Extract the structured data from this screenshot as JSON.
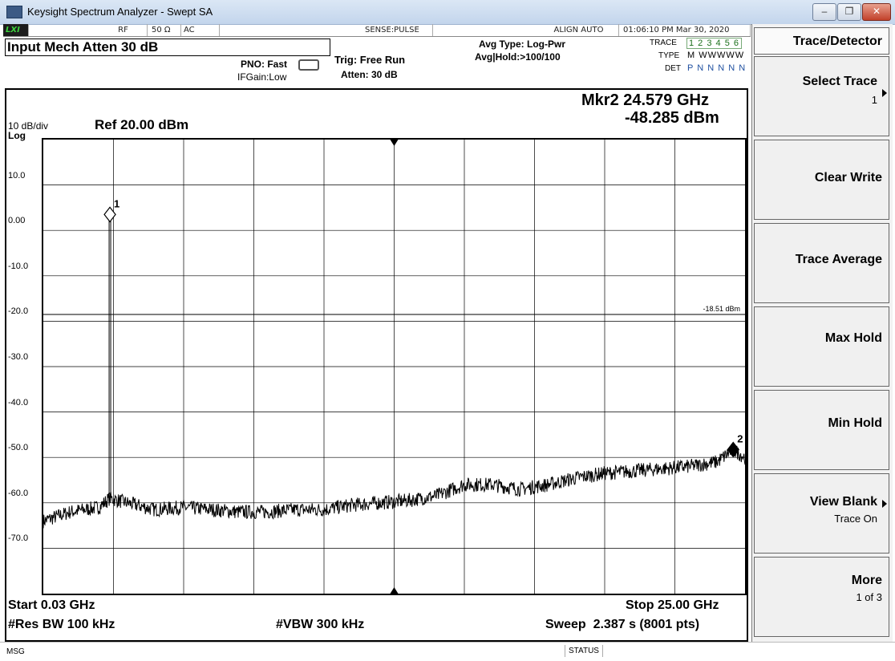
{
  "window": {
    "title": "Keysight Spectrum Analyzer - Swept SA",
    "controls": [
      "‒",
      "❐",
      "✕"
    ]
  },
  "status_bar": {
    "lxi": "LXI",
    "rf": "RF",
    "impedance": "50 Ω",
    "coupling": "AC",
    "sense": "SENSE:PULSE",
    "align": "ALIGN AUTO",
    "datetime": "01:06:10 PM Mar 30, 2020"
  },
  "header": {
    "input_mech_atten": "Input Mech Atten 30 dB",
    "pno": "PNO: Fast",
    "ifgain": "IFGain:Low",
    "trig": "Trig: Free Run",
    "atten": "Atten: 30 dB",
    "avg_type": "Avg Type: Log-Pwr",
    "avg_hold": "Avg|Hold:>100/100",
    "trace_label": "TRACE",
    "trace_values": "1 2 3 4 5 6",
    "type_label": "TYPE",
    "type_values": "M WWWWW",
    "det_label": "DET",
    "det_values": "P N N N N N"
  },
  "marker": {
    "freq": "Mkr2 24.579 GHz",
    "level": "-48.285 dBm"
  },
  "scale": {
    "div": "10 dB/div",
    "log": "Log",
    "ref": "Ref 20.00 dBm"
  },
  "y_ticks": [
    "10.0",
    "0.00",
    "-10.0",
    "-20.0",
    "-30.0",
    "-40.0",
    "-50.0",
    "-60.0",
    "-70.0"
  ],
  "display_line": {
    "label": "-18.51 dBm",
    "value": -18.51
  },
  "footer": {
    "start": "Start 0.03 GHz",
    "stop": "Stop 25.00 GHz",
    "res_bw": "#Res BW 100 kHz",
    "vbw": "#VBW 300 kHz",
    "sweep": "Sweep  2.387 s (8001 pts)"
  },
  "softkeys": {
    "menu_title": "Trace/Detector",
    "select_trace": "Select Trace",
    "select_trace_value": "1",
    "clear_write": "Clear Write",
    "trace_average": "Trace Average",
    "max_hold": "Max Hold",
    "min_hold": "Min Hold",
    "view_blank": "View Blank",
    "view_blank_value": "Trace On",
    "more": "More",
    "more_value": "1 of 3"
  },
  "bottom": {
    "msg": "MSG",
    "status": "STATUS"
  },
  "chart_data": {
    "type": "line",
    "x_range_ghz": [
      0.03,
      25.0
    ],
    "ylim": [
      -80,
      20
    ],
    "markers": [
      {
        "label": "1",
        "x": 2.4,
        "y": 3.5
      },
      {
        "label": "2",
        "x": 24.579,
        "y": -48.285
      }
    ],
    "series": [
      {
        "x": [
          0.03,
          1.0,
          2.0,
          2.4,
          3.0,
          4.0,
          5.0,
          6.0,
          7.0,
          8.0,
          9.0,
          10.0,
          11.0,
          12.0,
          13.0,
          14.0,
          15.0,
          16.0,
          17.0,
          18.0,
          19.0,
          20.0,
          21.0,
          22.0,
          23.0,
          24.0,
          24.579,
          25.0
        ],
        "y": [
          -64,
          -62,
          -61,
          -59,
          -60,
          -61.5,
          -61,
          -61.5,
          -62,
          -62,
          -61.5,
          -61.5,
          -60.5,
          -60,
          -59.5,
          -58.5,
          -56,
          -56,
          -57,
          -56,
          -54.5,
          -53.5,
          -53,
          -52.5,
          -52,
          -51,
          -48.3,
          -50
        ]
      }
    ]
  }
}
